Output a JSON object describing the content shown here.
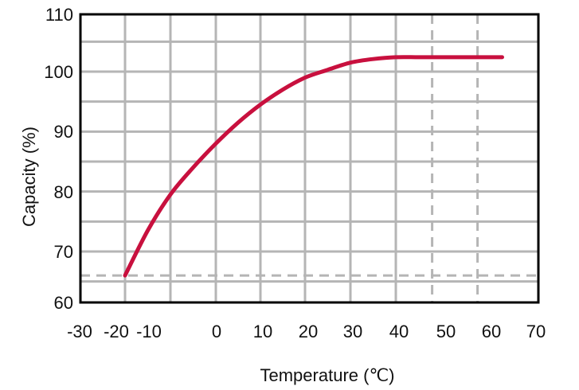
{
  "chart_data": {
    "type": "line",
    "title": "",
    "xlabel": "Temperature (℃)",
    "ylabel": "Capacity (%)",
    "xlim": [
      -30,
      70
    ],
    "ylim": [
      60,
      110
    ],
    "x_ticks": [
      "-30",
      "-20",
      "-10",
      "0",
      "10",
      "20",
      "30",
      "40",
      "50",
      "60",
      "70"
    ],
    "y_ticks": [
      "60",
      "70",
      "80",
      "90",
      "100",
      "110"
    ],
    "grid": true,
    "legend": "none",
    "series": [
      {
        "color": "#c8103e",
        "x": [
          -20,
          -15,
          -10,
          -5,
          0,
          5,
          10,
          15,
          20,
          25,
          30,
          35,
          40,
          45,
          50,
          55,
          60,
          63
        ],
        "y": [
          66,
          73.5,
          79.5,
          84,
          88,
          91.5,
          94.5,
          97,
          99,
          100.3,
          101.5,
          102.1,
          102.4,
          102.4,
          102.4,
          102.4,
          102.4,
          102.4
        ]
      }
    ],
    "reference_lines": {
      "horizontal": [
        70,
        66
      ],
      "vertical": [
        48,
        58
      ],
      "style": "dashed",
      "color": "#b5b5b5"
    }
  }
}
